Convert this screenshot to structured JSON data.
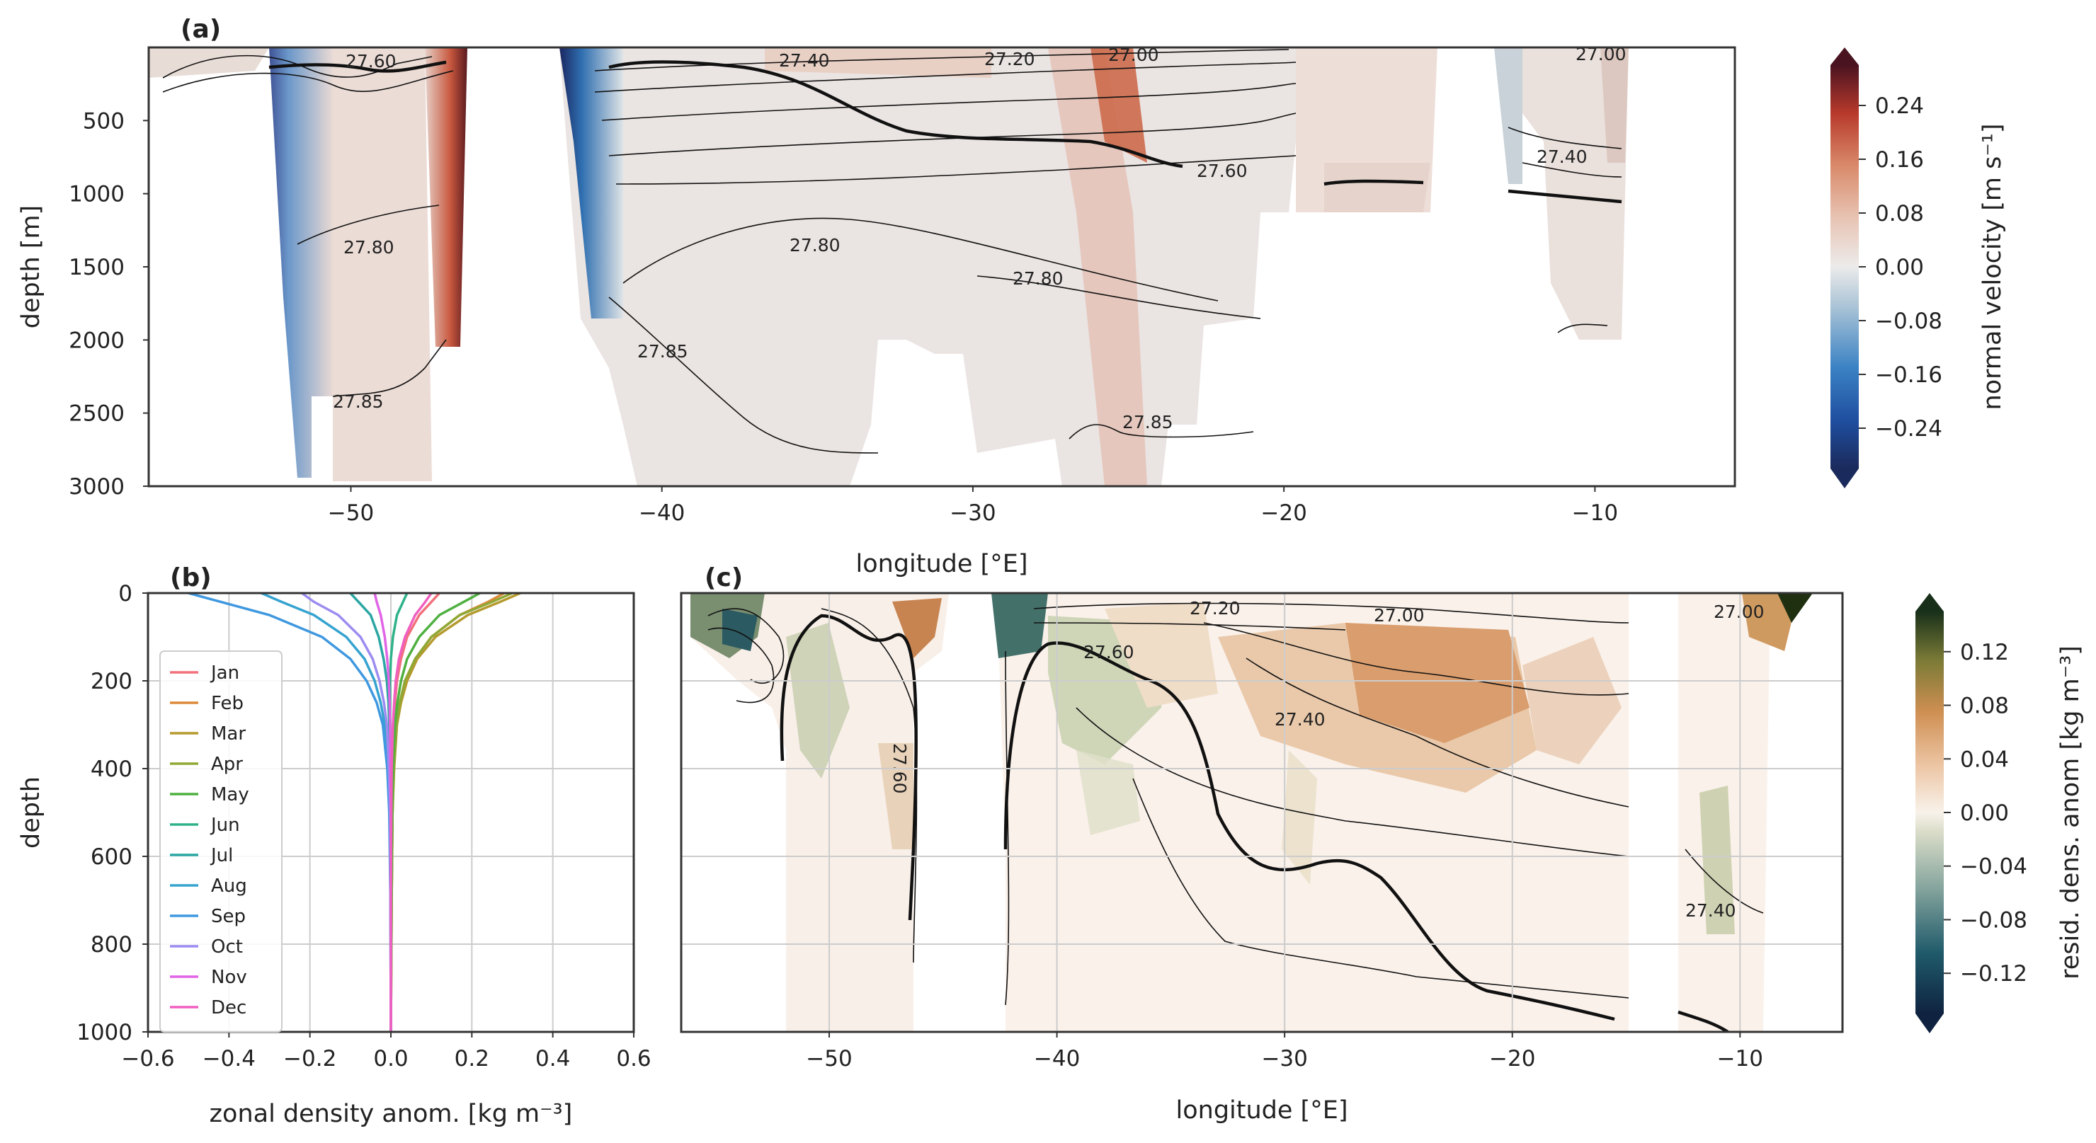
{
  "chart_data": [
    {
      "panel": "(a)",
      "type": "heatmap",
      "xlabel": "longitude [°E]",
      "ylabel": "depth [m]",
      "xlim": [
        -56.5,
        -5.5
      ],
      "ylim": [
        3000,
        0
      ],
      "x_ticks": [
        -50,
        -40,
        -30,
        -20,
        -10
      ],
      "y_ticks": [
        500,
        1000,
        1500,
        2000,
        2500,
        3000
      ],
      "colorbar": {
        "label": "normal velocity [m s⁻¹]",
        "range": [
          -0.3,
          0.3
        ],
        "ticks": [
          0.24,
          0.16,
          0.08,
          0.0,
          -0.08,
          -0.16,
          -0.24
        ],
        "tick_labels": [
          "0.24",
          "0.16",
          "0.08",
          "0.00",
          "−0.08",
          "−0.16",
          "−0.24"
        ]
      },
      "contour_labels": [
        "27.60",
        "27.40",
        "27.20",
        "27.00",
        "27.00",
        "27.40",
        "27.60",
        "27.80",
        "27.80",
        "27.80",
        "27.85",
        "27.85",
        "27.85"
      ],
      "bold_contour": "27.60"
    },
    {
      "panel": "(b)",
      "type": "line",
      "xlabel": "zonal density anom. [kg m⁻³]",
      "ylabel": "depth",
      "xlim": [
        -0.6,
        0.6
      ],
      "ylim": [
        1000,
        0
      ],
      "x_ticks": [
        -0.6,
        -0.4,
        -0.2,
        0.0,
        0.2,
        0.4,
        0.6
      ],
      "x_tick_labels": [
        "−0.6",
        "−0.4",
        "−0.2",
        "0.0",
        "0.2",
        "0.4",
        "0.6"
      ],
      "y_ticks": [
        0,
        200,
        400,
        600,
        800,
        1000
      ],
      "grid": true,
      "legend": "left",
      "depth": [
        0,
        20,
        50,
        100,
        150,
        200,
        250,
        300,
        400,
        500,
        700,
        1000
      ],
      "series": [
        {
          "name": "Jan",
          "color": "#f2707b",
          "values": [
            0.12,
            0.1,
            0.07,
            0.04,
            0.025,
            0.015,
            0.01,
            0.006,
            0.003,
            0.002,
            0.001,
            0
          ]
        },
        {
          "name": "Feb",
          "color": "#dd8a3a",
          "values": [
            0.28,
            0.24,
            0.17,
            0.1,
            0.06,
            0.035,
            0.022,
            0.014,
            0.007,
            0.004,
            0.002,
            0
          ]
        },
        {
          "name": "Mar",
          "color": "#b59a2e",
          "values": [
            0.32,
            0.27,
            0.19,
            0.11,
            0.065,
            0.04,
            0.025,
            0.015,
            0.008,
            0.004,
            0.002,
            0
          ]
        },
        {
          "name": "Apr",
          "color": "#8fa835",
          "values": [
            0.3,
            0.25,
            0.17,
            0.1,
            0.06,
            0.035,
            0.022,
            0.014,
            0.007,
            0.004,
            0.002,
            0
          ]
        },
        {
          "name": "May",
          "color": "#4fb040",
          "values": [
            0.22,
            0.18,
            0.12,
            0.07,
            0.04,
            0.025,
            0.016,
            0.01,
            0.005,
            0.003,
            0.001,
            0
          ]
        },
        {
          "name": "Jun",
          "color": "#2fb28a",
          "values": [
            0.04,
            0.03,
            0.015,
            0.005,
            0.0,
            -0.002,
            -0.002,
            -0.002,
            -0.001,
            -0.001,
            0,
            0
          ]
        },
        {
          "name": "Jul",
          "color": "#2aa6a3",
          "values": [
            -0.1,
            -0.08,
            -0.05,
            -0.03,
            -0.018,
            -0.01,
            -0.006,
            -0.004,
            -0.002,
            -0.001,
            0,
            0
          ]
        },
        {
          "name": "Aug",
          "color": "#35a3d0",
          "values": [
            -0.32,
            -0.27,
            -0.19,
            -0.11,
            -0.065,
            -0.04,
            -0.025,
            -0.015,
            -0.007,
            -0.003,
            -0.001,
            0
          ]
        },
        {
          "name": "Sep",
          "color": "#3f98e0",
          "values": [
            -0.5,
            -0.42,
            -0.3,
            -0.17,
            -0.1,
            -0.06,
            -0.035,
            -0.02,
            -0.009,
            -0.004,
            -0.001,
            0
          ]
        },
        {
          "name": "Oct",
          "color": "#9c8cf0",
          "values": [
            -0.22,
            -0.19,
            -0.13,
            -0.075,
            -0.045,
            -0.028,
            -0.017,
            -0.01,
            -0.005,
            -0.002,
            -0.001,
            0
          ]
        },
        {
          "name": "Nov",
          "color": "#e064e6",
          "values": [
            -0.04,
            -0.035,
            -0.025,
            -0.015,
            -0.009,
            -0.005,
            -0.003,
            -0.002,
            -0.001,
            0,
            0,
            0
          ]
        },
        {
          "name": "Dec",
          "color": "#f05fc0",
          "values": [
            0.1,
            0.085,
            0.06,
            0.035,
            0.02,
            0.012,
            0.008,
            0.005,
            0.002,
            0.001,
            0,
            0
          ]
        }
      ]
    },
    {
      "panel": "(c)",
      "type": "heatmap",
      "xlabel": "longitude [°E]",
      "xlim": [
        -56.5,
        -5.5
      ],
      "ylim": [
        1000,
        0
      ],
      "x_ticks": [
        -50,
        -40,
        -30,
        -20,
        -10
      ],
      "grid": true,
      "colorbar": {
        "label": "resid. dens. anom [kg m⁻³]",
        "range": [
          -0.15,
          0.15
        ],
        "ticks": [
          0.12,
          0.08,
          0.04,
          0.0,
          -0.04,
          -0.08,
          -0.12
        ],
        "tick_labels": [
          "0.12",
          "0.08",
          "0.04",
          "0.00",
          "−0.04",
          "−0.08",
          "−0.12"
        ]
      },
      "contour_labels": [
        "27.20",
        "27.00",
        "27.00",
        "27.60",
        "27.40",
        "27.60",
        "27.40"
      ],
      "bold_contour": "27.60"
    }
  ],
  "legend_title_labels": [
    "Jan",
    "Feb",
    "Mar",
    "Apr",
    "May",
    "Jun",
    "Jul",
    "Aug",
    "Sep",
    "Oct",
    "Nov",
    "Dec"
  ]
}
